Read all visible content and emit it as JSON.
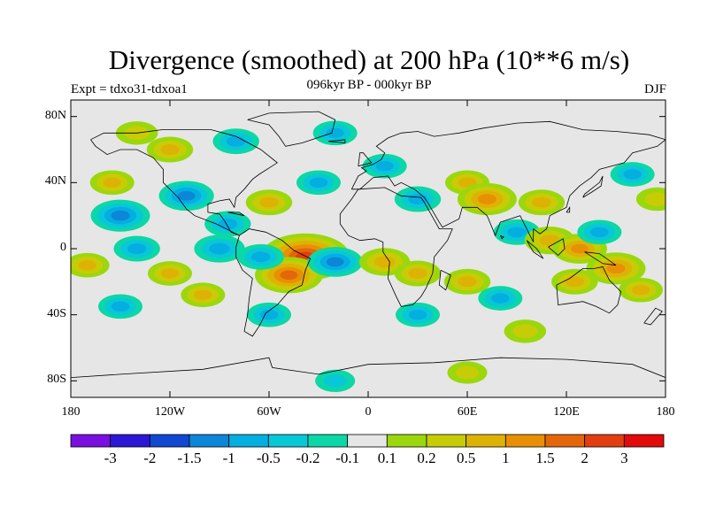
{
  "figure": {
    "title": "Divergence (smoothed) at 200 hPa (10**6 m/s)",
    "experiment": "Expt = tdxo31-tdxoa1",
    "period": "096kyr BP - 000kyr BP",
    "season": "DJF"
  },
  "axes": {
    "lat_labels": [
      "80N",
      "40N",
      "0",
      "40S",
      "80S"
    ],
    "lon_labels": [
      "180",
      "120W",
      "60W",
      "0",
      "60E",
      "120E",
      "180"
    ]
  },
  "colorbar": {
    "labels": [
      "-3",
      "-2",
      "-1.5",
      "-1",
      "-0.5",
      "-0.2",
      "-0.1",
      "0.1",
      "0.2",
      "0.5",
      "1",
      "1.5",
      "2",
      "3"
    ],
    "colors": [
      "#7a10e0",
      "#2c17d6",
      "#1148d2",
      "#0c86d8",
      "#04aee0",
      "#08c8d8",
      "#0cd7a6",
      "#e6e6e6",
      "#9bd70c",
      "#c8cc06",
      "#deb204",
      "#e89004",
      "#e4660a",
      "#e23e10",
      "#e20a0a"
    ]
  },
  "chart_data": {
    "type": "heatmap",
    "title": "Divergence (smoothed) at 200 hPa (10**6 m/s)",
    "x_range": [
      -180,
      180
    ],
    "y_range": [
      -90,
      90
    ],
    "contour_levels": [
      -3,
      -2,
      -1.5,
      -1,
      -0.5,
      -0.2,
      -0.1,
      0.1,
      0.2,
      0.5,
      1,
      1.5,
      2,
      3
    ],
    "features": [
      {
        "lon": -38,
        "lat": -5,
        "value": 2.6
      },
      {
        "lon": -48,
        "lat": -16,
        "value": 1.6
      },
      {
        "lon": -20,
        "lat": -8,
        "value": -1.0
      },
      {
        "lon": -150,
        "lat": 20,
        "value": -1.2
      },
      {
        "lon": -110,
        "lat": 32,
        "value": -1.0
      },
      {
        "lon": -155,
        "lat": 40,
        "value": 0.5
      },
      {
        "lon": -120,
        "lat": 60,
        "value": 0.6
      },
      {
        "lon": -85,
        "lat": 15,
        "value": -0.6
      },
      {
        "lon": -60,
        "lat": 28,
        "value": 0.6
      },
      {
        "lon": -30,
        "lat": 40,
        "value": -0.5
      },
      {
        "lon": -140,
        "lat": 0,
        "value": -0.6
      },
      {
        "lon": -90,
        "lat": 0,
        "value": -0.8
      },
      {
        "lon": -65,
        "lat": -5,
        "value": -0.6
      },
      {
        "lon": -120,
        "lat": -15,
        "value": 0.5
      },
      {
        "lon": -100,
        "lat": -28,
        "value": 0.5
      },
      {
        "lon": -60,
        "lat": -40,
        "value": -0.5
      },
      {
        "lon": -150,
        "lat": -35,
        "value": -0.5
      },
      {
        "lon": 10,
        "lat": -8,
        "value": 0.8
      },
      {
        "lon": 30,
        "lat": -15,
        "value": 0.6
      },
      {
        "lon": 30,
        "lat": 30,
        "value": -0.6
      },
      {
        "lon": 10,
        "lat": 50,
        "value": -0.5
      },
      {
        "lon": 60,
        "lat": 40,
        "value": 0.5
      },
      {
        "lon": 72,
        "lat": 30,
        "value": 1.2
      },
      {
        "lon": 105,
        "lat": 28,
        "value": 0.6
      },
      {
        "lon": 90,
        "lat": 10,
        "value": -0.6
      },
      {
        "lon": 110,
        "lat": 5,
        "value": 0.8
      },
      {
        "lon": 128,
        "lat": 0,
        "value": 1.0
      },
      {
        "lon": 140,
        "lat": 10,
        "value": -0.5
      },
      {
        "lon": 150,
        "lat": -12,
        "value": 1.2
      },
      {
        "lon": 125,
        "lat": -20,
        "value": 0.6
      },
      {
        "lon": 165,
        "lat": -25,
        "value": 0.5
      },
      {
        "lon": 60,
        "lat": -20,
        "value": 0.6
      },
      {
        "lon": 80,
        "lat": -30,
        "value": -0.5
      },
      {
        "lon": 30,
        "lat": -40,
        "value": -0.5
      },
      {
        "lon": 95,
        "lat": -50,
        "value": 0.4
      },
      {
        "lon": -140,
        "lat": 70,
        "value": 0.4
      },
      {
        "lon": -80,
        "lat": 65,
        "value": -0.6
      },
      {
        "lon": -20,
        "lat": 70,
        "value": -0.5
      },
      {
        "lon": 160,
        "lat": 45,
        "value": -0.5
      },
      {
        "lon": 175,
        "lat": 30,
        "value": 0.4
      },
      {
        "lon": -170,
        "lat": -10,
        "value": 0.5
      },
      {
        "lon": -20,
        "lat": -80,
        "value": -0.3
      },
      {
        "lon": 60,
        "lat": -75,
        "value": 0.3
      }
    ]
  }
}
